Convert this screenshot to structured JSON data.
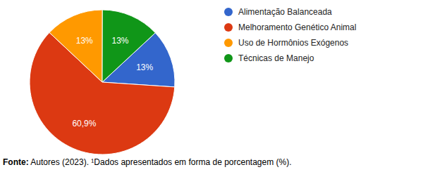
{
  "chart_data": {
    "type": "pie",
    "categories": [
      "Alimentação Balanceada",
      "Melhoramento Genético Animal",
      "Uso de Hormônios Exógenos",
      "Técnicas de Manejo"
    ],
    "values": [
      13,
      60.9,
      13,
      13
    ],
    "value_labels": [
      "13%",
      "60,9%",
      "13%",
      "13%"
    ],
    "colors": [
      "#3366cc",
      "#dc3912",
      "#ff9900",
      "#109618"
    ],
    "data_labels": true,
    "legend": "upper right",
    "caption": "Fonte: Autores (2023). ¹Dados apresentados em forma de porcentagem (%)."
  }
}
